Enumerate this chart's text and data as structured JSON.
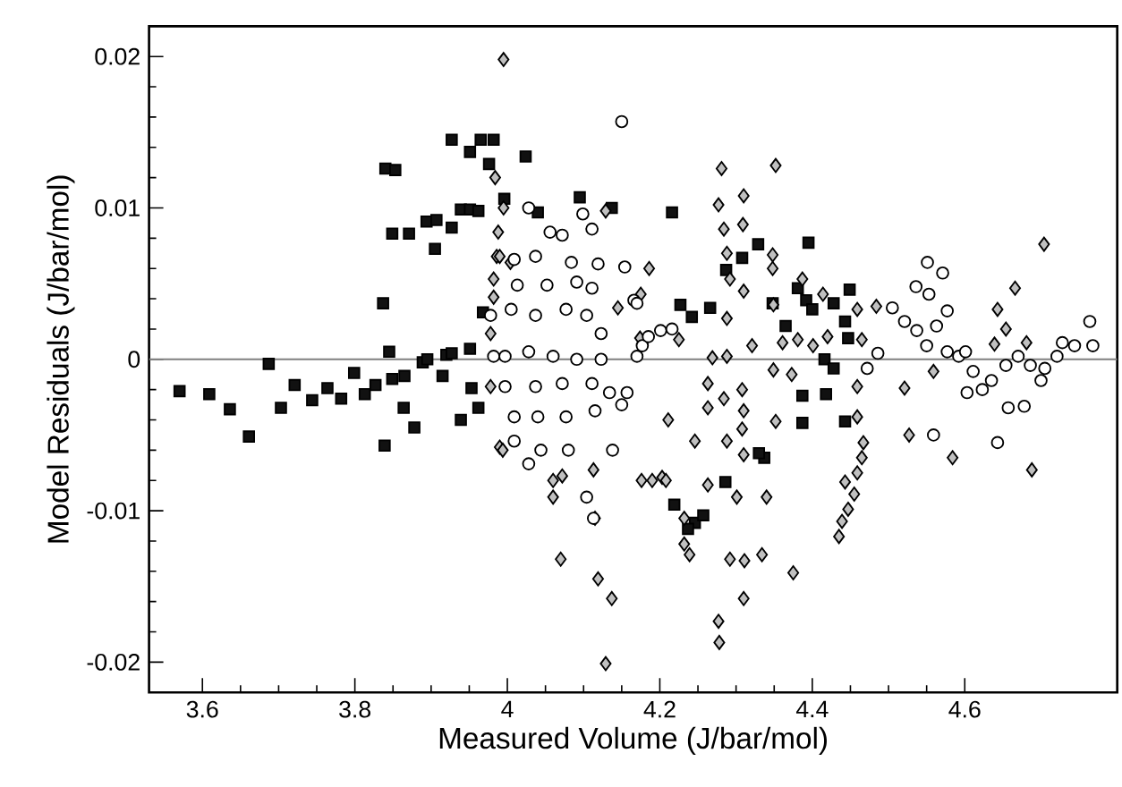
{
  "chart_data": {
    "type": "scatter",
    "xlabel": "Measured Volume (J/bar/mol)",
    "ylabel": "Model Residuals (J/bar/mol)",
    "xlim": [
      3.53,
      4.8
    ],
    "ylim": [
      -0.022,
      0.022
    ],
    "xticks": [
      3.6,
      3.8,
      4,
      4.2,
      4.4,
      4.6
    ],
    "yticks": [
      -0.02,
      -0.01,
      0,
      0.01,
      0.02
    ],
    "grid": false,
    "ref_lines": [
      {
        "axis": "y",
        "value": 0,
        "color": "#808080"
      }
    ],
    "series": [
      {
        "color": "#111111",
        "marker": "square",
        "x": [
          3.57,
          3.609,
          3.636,
          3.661,
          3.687,
          3.703,
          3.721,
          3.744,
          3.764,
          3.782,
          3.799,
          3.813,
          3.827,
          3.839,
          3.837,
          3.845,
          3.849,
          3.865,
          3.864,
          3.878,
          3.889,
          3.895,
          3.915,
          3.92,
          3.939,
          3.927,
          3.951,
          3.953,
          3.962,
          3.84,
          3.853,
          3.849,
          3.871,
          3.894,
          3.905,
          3.907,
          3.927,
          3.939,
          3.951,
          3.962,
          3.927,
          3.951,
          3.965,
          3.982,
          3.976,
          3.996,
          4.024,
          4.04,
          3.968,
          4.095,
          4.137,
          4.216,
          4.227,
          4.242,
          4.266,
          4.308,
          4.329,
          4.395,
          4.287,
          4.348,
          4.365,
          4.381,
          4.392,
          4.4,
          4.428,
          4.449,
          4.443,
          4.447,
          4.416,
          4.428,
          4.418,
          4.387,
          4.387,
          4.443,
          4.337,
          4.33,
          4.286,
          4.219,
          4.246,
          4.257,
          4.237
        ],
        "values": [
          -0.0021,
          -0.0023,
          -0.0033,
          -0.0051,
          -0.0003,
          -0.0032,
          -0.0017,
          -0.0027,
          -0.0019,
          -0.0026,
          -0.0009,
          -0.0023,
          -0.0017,
          -0.0057,
          0.0037,
          0.0005,
          -0.0013,
          -0.0011,
          -0.0032,
          -0.0045,
          -0.0002,
          0.0,
          -0.0011,
          0.0003,
          -0.004,
          0.0004,
          0.0007,
          -0.0019,
          -0.0032,
          0.0126,
          0.0125,
          0.0083,
          0.0083,
          0.0091,
          0.0073,
          0.0092,
          0.0087,
          0.0099,
          0.0099,
          0.0098,
          0.0145,
          0.0137,
          0.0145,
          0.0145,
          0.0129,
          0.0106,
          0.0134,
          0.0097,
          0.0031,
          0.0107,
          0.01,
          0.0097,
          0.0036,
          0.0028,
          0.0034,
          0.0067,
          0.0076,
          0.0077,
          0.0059,
          0.0037,
          0.0022,
          0.0047,
          0.0039,
          0.0033,
          0.0037,
          0.0046,
          0.0025,
          0.0014,
          0.0,
          -0.0006,
          -0.0023,
          -0.0024,
          -0.0042,
          -0.0041,
          -0.0065,
          -0.0062,
          -0.0081,
          -0.0096,
          -0.0108,
          -0.0103,
          -0.0112
        ]
      },
      {
        "color": "#c0c0c0",
        "marker": "diamond",
        "x": [
          3.995,
          3.984,
          3.988,
          3.995,
          3.986,
          4.004,
          3.982,
          3.978,
          3.978,
          3.99,
          4.06,
          4.072,
          4.07,
          4.129,
          4.119,
          4.137,
          4.113,
          4.06,
          4.129,
          4.176,
          4.203,
          4.211,
          4.186,
          4.175,
          4.145,
          4.174,
          4.225,
          4.232,
          4.239,
          4.232,
          4.246,
          4.263,
          4.263,
          4.263,
          4.269,
          4.277,
          4.278,
          4.281,
          4.288,
          4.284,
          4.288,
          4.292,
          4.311,
          4.31,
          4.334,
          4.34,
          4.301,
          4.277,
          4.31,
          4.284,
          4.309,
          4.288,
          4.292,
          4.31,
          4.288,
          4.321,
          4.308,
          4.31,
          4.308,
          4.31,
          4.352,
          4.348,
          4.348,
          4.349,
          4.349,
          4.352,
          4.375,
          4.361,
          4.387,
          4.381,
          4.373,
          4.401,
          4.414,
          4.42,
          4.465,
          4.459,
          4.484,
          4.459,
          4.459,
          4.467,
          4.465,
          4.459,
          4.455,
          4.447,
          4.439,
          4.435,
          4.443,
          4.521,
          4.527,
          4.559,
          4.584,
          4.643,
          4.654,
          4.639,
          4.666,
          4.681,
          4.688,
          4.704,
          3.99,
          3.982,
          3.994,
          4.115,
          4.208,
          4.19
        ],
        "values": [
          0.0198,
          0.012,
          0.0084,
          0.01,
          0.0068,
          0.0064,
          0.0041,
          0.0017,
          -0.0018,
          -0.0058,
          -0.0091,
          -0.0077,
          -0.0132,
          -0.0201,
          -0.0145,
          -0.0158,
          -0.0073,
          -0.008,
          0.0098,
          -0.008,
          -0.0078,
          -0.004,
          0.006,
          0.0043,
          0.0034,
          0.0014,
          0.0013,
          -0.0122,
          -0.0129,
          -0.0105,
          -0.0054,
          -0.0083,
          -0.0032,
          -0.0016,
          0.0001,
          -0.0173,
          -0.0187,
          0.0126,
          0.0002,
          -0.0026,
          -0.0054,
          -0.0132,
          -0.0133,
          -0.0158,
          -0.0129,
          -0.0091,
          -0.0091,
          0.0102,
          0.0108,
          0.0086,
          0.0089,
          0.007,
          0.0053,
          0.0045,
          0.0027,
          0.0009,
          -0.002,
          -0.0034,
          -0.0046,
          -0.0063,
          0.0128,
          0.0069,
          0.006,
          0.0036,
          -0.0007,
          -0.0041,
          -0.0141,
          0.0011,
          0.0053,
          0.0013,
          -0.001,
          0.0009,
          0.0043,
          0.0015,
          0.0013,
          0.0033,
          0.0035,
          -0.0018,
          -0.0038,
          -0.0055,
          -0.0065,
          -0.0075,
          -0.0089,
          -0.0099,
          -0.0107,
          -0.0117,
          -0.0081,
          -0.0019,
          -0.005,
          -0.0008,
          -0.0065,
          0.0033,
          0.002,
          0.001,
          0.0047,
          0.0011,
          -0.0073,
          0.0076,
          0.0068,
          0.0053,
          -0.006,
          -0.0105,
          -0.008,
          -0.008
        ]
      },
      {
        "color": "#ffffff",
        "marker": "circle",
        "x": [
          4.15,
          4.028,
          4.056,
          4.072,
          4.099,
          4.111,
          4.009,
          4.037,
          4.084,
          4.119,
          4.154,
          4.166,
          4.013,
          4.052,
          4.091,
          4.111,
          4.005,
          4.037,
          4.077,
          4.104,
          4.123,
          3.997,
          4.028,
          4.06,
          4.091,
          4.123,
          3.997,
          4.037,
          4.072,
          4.111,
          4.134,
          4.009,
          4.04,
          4.077,
          4.115,
          4.009,
          4.044,
          4.08,
          4.138,
          4.028,
          4.104,
          4.17,
          4.177,
          4.185,
          4.201,
          4.216,
          4.157,
          4.15,
          3.978,
          3.982,
          4.17,
          4.113,
          4.486,
          4.472,
          4.505,
          4.521,
          4.537,
          4.551,
          4.536,
          4.553,
          4.571,
          4.577,
          4.563,
          4.55,
          4.577,
          4.592,
          4.601,
          4.611,
          4.603,
          4.623,
          4.635,
          4.654,
          4.67,
          4.657,
          4.678,
          4.686,
          4.7,
          4.705,
          4.721,
          4.728,
          4.744,
          4.764,
          4.768,
          4.559,
          4.643
        ],
        "values": [
          0.0157,
          0.01,
          0.0084,
          0.0082,
          0.0096,
          0.0086,
          0.0066,
          0.0068,
          0.0064,
          0.0063,
          0.0061,
          0.0039,
          0.0049,
          0.0049,
          0.0051,
          0.0047,
          0.0033,
          0.0029,
          0.0033,
          0.0029,
          0.0017,
          0.0002,
          0.0005,
          0.0002,
          0.0,
          0.0,
          -0.0018,
          -0.0018,
          -0.0016,
          -0.0016,
          -0.0022,
          -0.0038,
          -0.0038,
          -0.0038,
          -0.0034,
          -0.0054,
          -0.006,
          -0.006,
          -0.006,
          -0.0069,
          -0.0091,
          0.0002,
          0.0009,
          0.0015,
          0.0019,
          0.002,
          -0.0022,
          -0.003,
          0.0029,
          0.0002,
          0.0037,
          -0.0105,
          0.0004,
          -0.0006,
          0.0034,
          0.0025,
          0.0019,
          0.0064,
          0.0048,
          0.0043,
          0.0057,
          0.0032,
          0.0022,
          0.0009,
          0.0005,
          0.0002,
          0.0005,
          -0.0008,
          -0.0022,
          -0.002,
          -0.0014,
          -0.0004,
          0.0002,
          -0.0032,
          -0.0031,
          -0.0004,
          -0.0014,
          -0.0006,
          0.0002,
          0.0011,
          0.0009,
          0.0025,
          0.0009,
          -0.005,
          -0.0055
        ]
      }
    ]
  }
}
